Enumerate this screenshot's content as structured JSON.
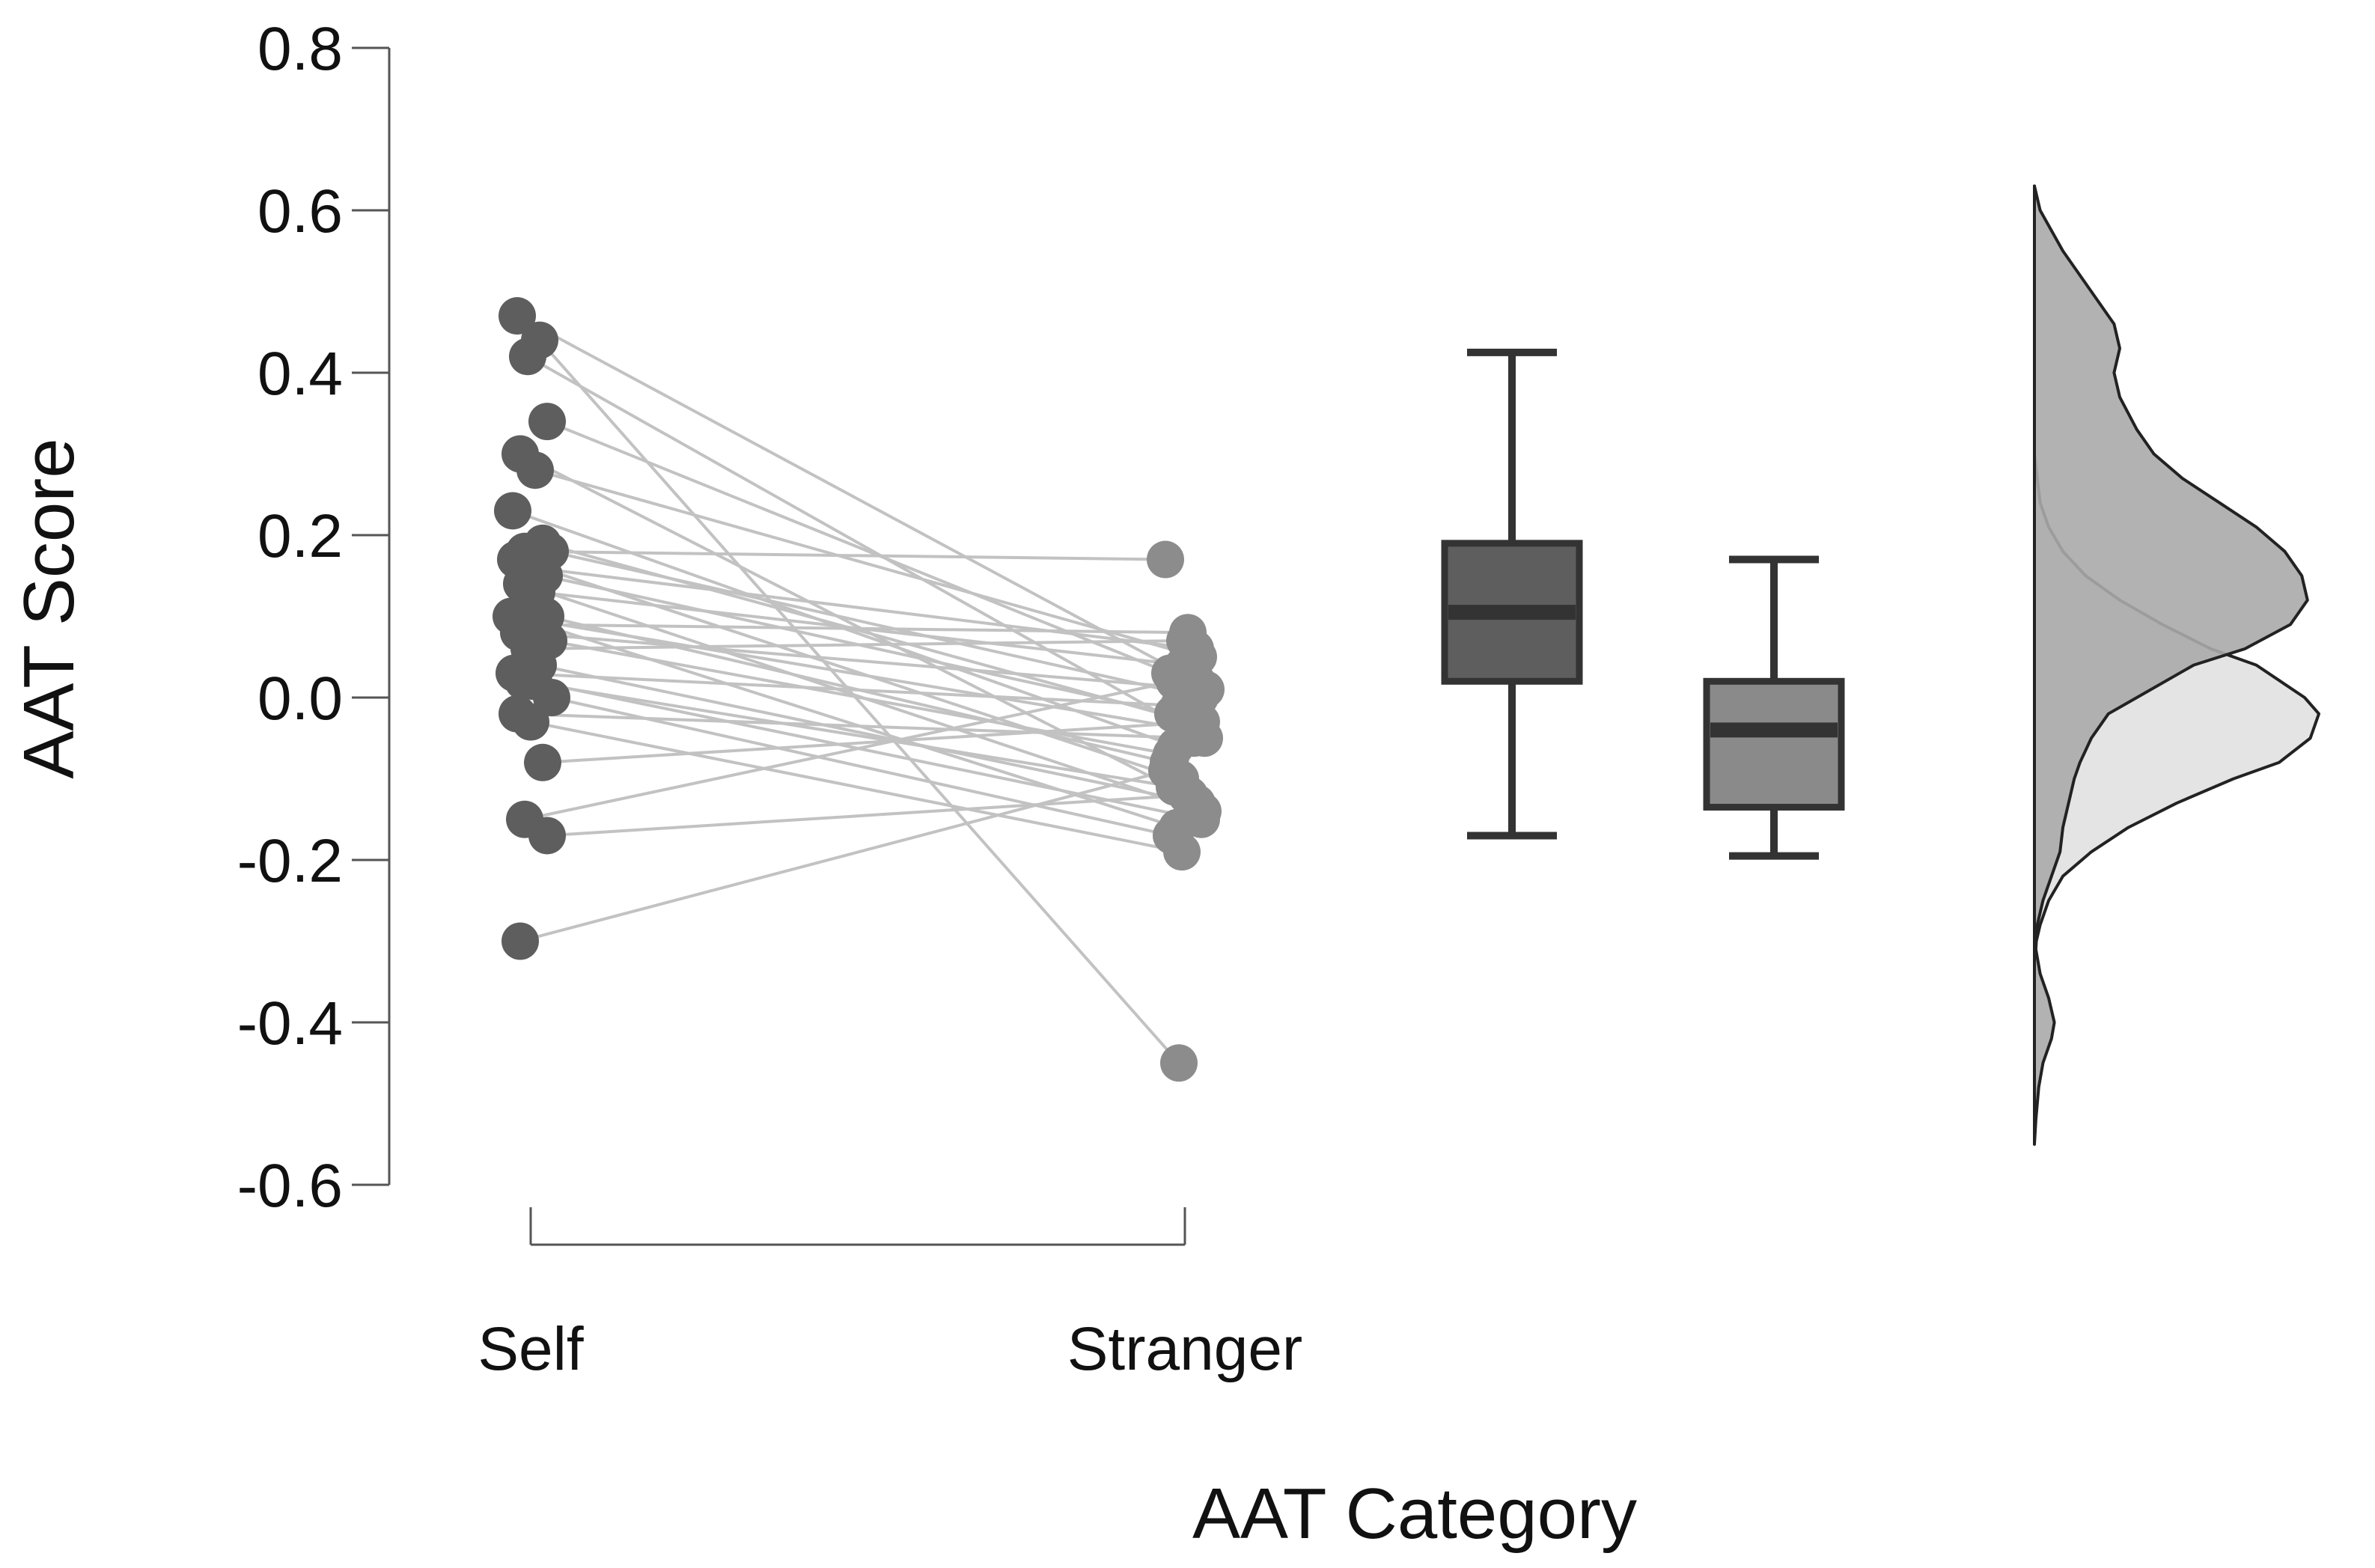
{
  "chart_data": {
    "type": "raincloud",
    "xlabel": "AAT Category",
    "ylabel": "AAT Score",
    "ylim": [
      -0.6,
      0.8
    ],
    "yticks": [
      -0.6,
      -0.4,
      -0.2,
      0.0,
      0.2,
      0.4,
      0.6,
      0.8
    ],
    "ytick_labels": [
      "-0.6",
      "-0.4",
      "-0.2",
      "0.0",
      "0.2",
      "0.4",
      "0.6",
      "0.8"
    ],
    "categories": [
      "Self",
      "Stranger"
    ],
    "grid": false,
    "legend": "none",
    "colors": {
      "self_points": "#5e5e5e",
      "stranger_points": "#8c8c8c",
      "connecting_lines": "#c2c2c2",
      "self_box": "#5e5e5e",
      "stranger_box": "#8a8a8a",
      "box_outline": "#333333",
      "self_density": "#aaaaaa",
      "stranger_density": "#e4e4e4",
      "axis": "#555555"
    },
    "paired_points": [
      {
        "self": 0.47,
        "stranger": 0.02
      },
      {
        "self": 0.44,
        "stranger": -0.45
      },
      {
        "self": 0.42,
        "stranger": -0.05
      },
      {
        "self": 0.34,
        "stranger": 0.03
      },
      {
        "self": 0.3,
        "stranger": -0.12
      },
      {
        "self": 0.28,
        "stranger": 0.05
      },
      {
        "self": 0.23,
        "stranger": -0.06
      },
      {
        "self": 0.19,
        "stranger": -0.03
      },
      {
        "self": 0.18,
        "stranger": 0.17
      },
      {
        "self": 0.18,
        "stranger": 0.0
      },
      {
        "self": 0.17,
        "stranger": -0.1
      },
      {
        "self": 0.16,
        "stranger": 0.06
      },
      {
        "self": 0.15,
        "stranger": -0.02
      },
      {
        "self": 0.14,
        "stranger": -0.14
      },
      {
        "self": 0.13,
        "stranger": 0.04
      },
      {
        "self": 0.1,
        "stranger": -0.04
      },
      {
        "self": 0.1,
        "stranger": -0.08
      },
      {
        "self": 0.09,
        "stranger": 0.08
      },
      {
        "self": 0.09,
        "stranger": -0.16
      },
      {
        "self": 0.08,
        "stranger": 0.01
      },
      {
        "self": 0.07,
        "stranger": -0.07
      },
      {
        "self": 0.06,
        "stranger": 0.07
      },
      {
        "self": 0.04,
        "stranger": -0.13
      },
      {
        "self": 0.03,
        "stranger": -0.01
      },
      {
        "self": 0.02,
        "stranger": -0.15
      },
      {
        "self": 0.02,
        "stranger": -0.11
      },
      {
        "self": 0.0,
        "stranger": -0.17
      },
      {
        "self": -0.02,
        "stranger": -0.05
      },
      {
        "self": -0.03,
        "stranger": -0.19
      },
      {
        "self": -0.08,
        "stranger": -0.03
      },
      {
        "self": -0.15,
        "stranger": 0.02
      },
      {
        "self": -0.17,
        "stranger": -0.12
      },
      {
        "self": -0.3,
        "stranger": -0.09
      }
    ],
    "boxplots": [
      {
        "category": "Self",
        "whisker_low": -0.17,
        "q1": 0.02,
        "median": 0.105,
        "q3": 0.19,
        "whisker_high": 0.425
      },
      {
        "category": "Stranger",
        "whisker_low": -0.195,
        "q1": -0.135,
        "median": -0.04,
        "q3": 0.02,
        "whisker_high": 0.17
      }
    ],
    "density": {
      "y": [
        0.63,
        0.6,
        0.55,
        0.5,
        0.46,
        0.43,
        0.4,
        0.37,
        0.33,
        0.3,
        0.27,
        0.24,
        0.21,
        0.18,
        0.15,
        0.12,
        0.09,
        0.06,
        0.04,
        0.0,
        -0.02,
        -0.05,
        -0.08,
        -0.1,
        -0.13,
        -0.16,
        -0.19,
        -0.22,
        -0.25,
        -0.28,
        -0.31,
        -0.34,
        -0.37,
        -0.4,
        -0.42,
        -0.45,
        -0.48,
        -0.52,
        -0.55
      ],
      "self": [
        0.0,
        0.02,
        0.1,
        0.2,
        0.28,
        0.3,
        0.28,
        0.3,
        0.36,
        0.42,
        0.52,
        0.65,
        0.78,
        0.88,
        0.94,
        0.96,
        0.9,
        0.74,
        0.56,
        0.36,
        0.26,
        0.2,
        0.16,
        0.14,
        0.12,
        0.1,
        0.09,
        0.06,
        0.03,
        0.01,
        0.005,
        0.02,
        0.05,
        0.07,
        0.06,
        0.03,
        0.015,
        0.005,
        0.0
      ],
      "stranger": [
        0,
        0,
        0,
        0,
        0,
        0,
        0,
        0,
        0,
        0.0,
        0.01,
        0.02,
        0.05,
        0.1,
        0.18,
        0.3,
        0.45,
        0.62,
        0.78,
        0.95,
        1.0,
        0.97,
        0.86,
        0.7,
        0.5,
        0.33,
        0.2,
        0.1,
        0.05,
        0.02,
        0.0,
        0,
        0,
        0,
        0,
        0,
        0,
        0,
        0
      ]
    }
  }
}
